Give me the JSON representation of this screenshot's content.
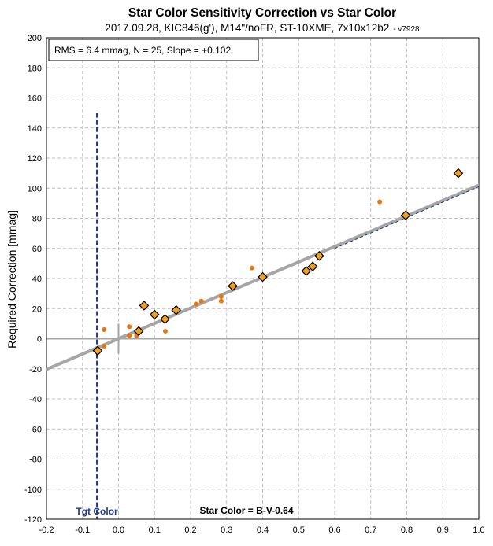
{
  "chart_data": {
    "type": "scatter",
    "title": "Star Color Sensitivity Correction vs Star Color",
    "subtitle": "2017.09.28, KIC846(g'), M14\"/noFR, ST-10XME, 7x10x12b2",
    "version": "- v7928",
    "stats_box": "RMS = 6.4 mmag, N = 25, Slope = +0.102",
    "ylabel": "Required Correction [mmag]",
    "xlabel_annotation": "Star Color = B-V-0.64",
    "target_label": "Tgt Color",
    "target_x": -0.06,
    "target_line_ymax": 150,
    "xlim": [
      -0.2,
      1.0
    ],
    "ylim": [
      -120,
      200
    ],
    "x_ticks": [
      "-0.2",
      "-0.1",
      "0.0",
      "0.1",
      "0.2",
      "0.3",
      "0.4",
      "0.5",
      "0.6",
      "0.7",
      "0.8",
      "0.9",
      "1.0"
    ],
    "x_tick_values": [
      -0.2,
      -0.1,
      0.0,
      0.1,
      0.2,
      0.3,
      0.4,
      0.5,
      0.6,
      0.7,
      0.8,
      0.9,
      1.0
    ],
    "y_ticks": [
      "-120",
      "-100",
      "-80",
      "-60",
      "-40",
      "-20",
      "0",
      "20",
      "40",
      "60",
      "80",
      "100",
      "120",
      "140",
      "160",
      "180",
      "200"
    ],
    "y_tick_values": [
      -120,
      -100,
      -80,
      -60,
      -40,
      -20,
      0,
      20,
      40,
      60,
      80,
      100,
      120,
      140,
      160,
      180,
      200
    ],
    "grid": true,
    "colors": {
      "diamond_fill": "#f0a020",
      "diamond_stroke": "#000000",
      "dot": "#e07818",
      "fit_line": "#a6a6a6",
      "target_line": "#1f3a8c",
      "target_label": "#1f3a8c",
      "zero_line": "#a6a6a6",
      "grid": "#bfbfbf"
    },
    "series": [
      {
        "marker": "diamond",
        "points": [
          [
            -0.058,
            -8
          ],
          [
            0.056,
            5
          ],
          [
            0.071,
            22
          ],
          [
            0.1,
            16
          ],
          [
            0.129,
            13
          ],
          [
            0.16,
            19
          ],
          [
            0.317,
            35
          ],
          [
            0.4,
            41
          ],
          [
            0.521,
            45
          ],
          [
            0.539,
            48
          ],
          [
            0.557,
            55
          ],
          [
            0.797,
            82
          ],
          [
            0.943,
            110
          ]
        ]
      },
      {
        "marker": "dot",
        "points": [
          [
            -0.04,
            6
          ],
          [
            -0.04,
            -5
          ],
          [
            0.03,
            8
          ],
          [
            0.03,
            2
          ],
          [
            0.05,
            2
          ],
          [
            0.13,
            5
          ],
          [
            0.215,
            23
          ],
          [
            0.23,
            25
          ],
          [
            0.285,
            25
          ],
          [
            0.285,
            28
          ],
          [
            0.37,
            47
          ],
          [
            0.725,
            91
          ]
        ]
      }
    ],
    "fit_line": {
      "slope": 0.102,
      "x_range": [
        -0.2,
        1.0
      ]
    },
    "dashed_fit_line": {
      "from": [
        0.6,
        60
      ],
      "to": [
        1.0,
        101
      ]
    }
  }
}
